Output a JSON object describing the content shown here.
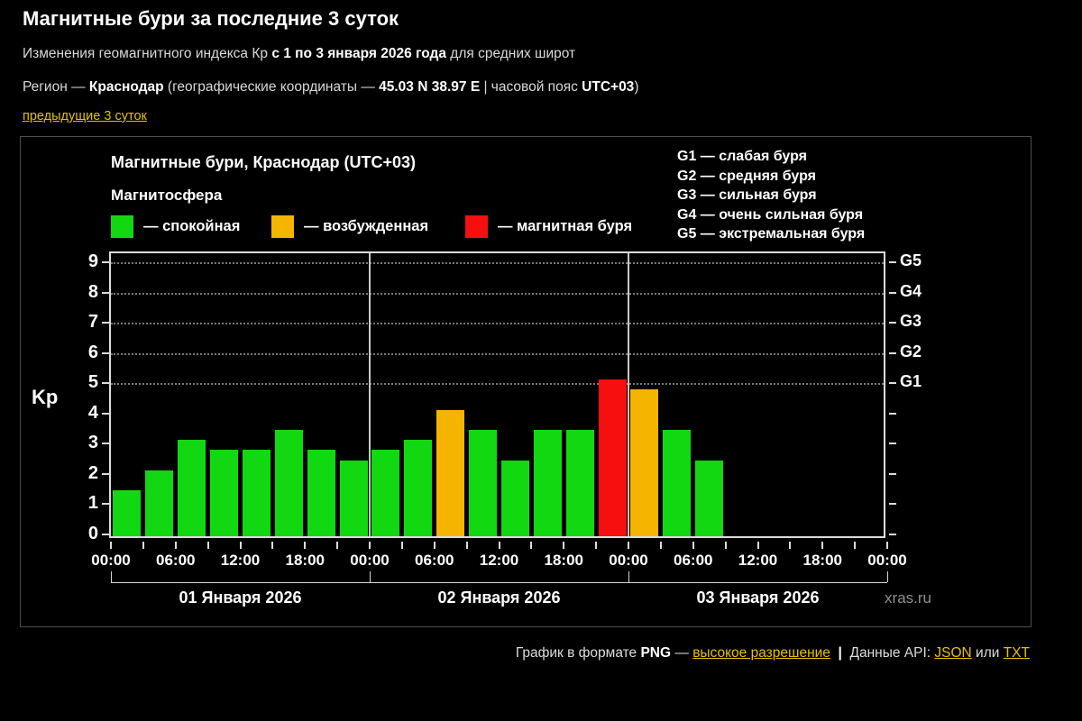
{
  "header": {
    "title": "Магнитные бури за последние 3 суток",
    "subtitle_segments": [
      {
        "text": "Изменения геомагнитного индекса Кр ",
        "bold": false
      },
      {
        "text": "с 1 по 3 января 2026 года",
        "bold": true
      },
      {
        "text": " для средних широт",
        "bold": false
      }
    ],
    "region_segments": [
      {
        "text": "Регион — ",
        "bold": false
      },
      {
        "text": "Краснодар",
        "bold": true
      },
      {
        "text": " (географические координаты — ",
        "bold": false
      },
      {
        "text": "45.03 N 38.97 E",
        "bold": true
      },
      {
        "text": " | часовой пояс ",
        "bold": false
      },
      {
        "text": "UTC+03",
        "bold": true
      },
      {
        "text": ")",
        "bold": false
      }
    ],
    "prev_link": "предыдущие 3 суток"
  },
  "chart_data": {
    "type": "bar",
    "title": "Магнитные бури, Краснодар (UTC+03)",
    "layer_label": "Магнитосфера",
    "ylabel": "Kp",
    "ylim": [
      0,
      9
    ],
    "yticks": [
      0,
      1,
      2,
      3,
      4,
      5,
      6,
      7,
      8,
      9
    ],
    "grid_levels": [
      5,
      6,
      7,
      8,
      9
    ],
    "legend": [
      {
        "name": "quiet",
        "label": "— спокойная",
        "color": "#12d812"
      },
      {
        "name": "excited",
        "label": "— возбужденная",
        "color": "#f5b400"
      },
      {
        "name": "storm",
        "label": "— магнитная буря",
        "color": "#f50f0f"
      }
    ],
    "g_scale_legend": [
      "G1 — слабая буря",
      "G2 — средняя буря",
      "G3 — сильная буря",
      "G4 — очень сильная буря",
      "G5 — экстремальная буря"
    ],
    "right_axis": [
      {
        "label": "G1",
        "kp": 5
      },
      {
        "label": "G2",
        "kp": 6
      },
      {
        "label": "G3",
        "kp": 7
      },
      {
        "label": "G4",
        "kp": 8
      },
      {
        "label": "G5",
        "kp": 9
      }
    ],
    "x_tick_labels": [
      "00:00",
      "06:00",
      "12:00",
      "18:00",
      "00:00",
      "06:00",
      "12:00",
      "18:00",
      "00:00",
      "06:00",
      "12:00",
      "18:00",
      "00:00"
    ],
    "slots_total": 24,
    "hours_per_bar": 3,
    "bars_kp": [
      1.33,
      2.0,
      3.0,
      2.67,
      2.67,
      3.33,
      2.67,
      2.33,
      2.67,
      3.0,
      4.0,
      3.33,
      2.33,
      3.33,
      3.33,
      5.0,
      4.67,
      3.33,
      2.33
    ],
    "color_rules": {
      "excited_min": 4,
      "storm_min": 5
    },
    "day_labels": [
      "01 Января 2026",
      "02 Января 2026",
      "03 Января 2026"
    ],
    "watermark": "xras.ru"
  },
  "footer": {
    "segments": [
      {
        "text": "График в формате ",
        "style": "normal"
      },
      {
        "text": "PNG",
        "style": "bold"
      },
      {
        "text": " — ",
        "style": "normal"
      },
      {
        "text": "высокое разрешение",
        "style": "link"
      },
      {
        "text": "  |  ",
        "style": "bold"
      },
      {
        "text": "Данные API: ",
        "style": "normal"
      },
      {
        "text": "JSON",
        "style": "link"
      },
      {
        "text": " или ",
        "style": "normal"
      },
      {
        "text": "TXT",
        "style": "link"
      }
    ]
  }
}
